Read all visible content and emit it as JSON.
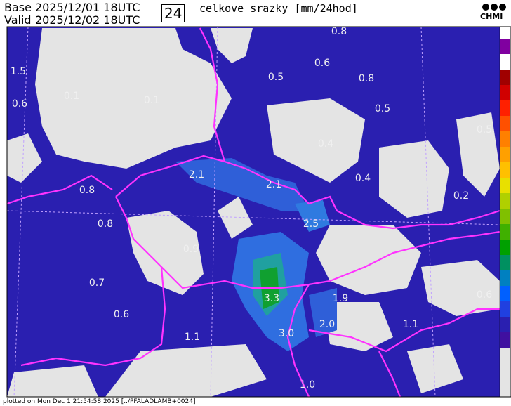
{
  "header": {
    "base_label": "Base",
    "base_time": "2025/12/01 18UTC",
    "valid_label": "Valid",
    "valid_time": "2025/12/02 18UTC",
    "hours": "24",
    "title": "celkove srazky [mm/24hod]",
    "logo": "CHMI"
  },
  "footer": "plotted on Mon Dec  1 21:54:58 2025 [../PFALADLAMB+0024]",
  "map_labels": [
    "0.8",
    "0.6",
    "0.5",
    "0.8",
    "1.5",
    "0.1",
    "0.1",
    "0.6",
    "0.5",
    "0.4",
    "2.1",
    "2.1",
    "0.4",
    "0.8",
    "0.2",
    "0.8",
    "2.5",
    "0.9",
    "0.7",
    "3.3",
    "1.9",
    "0.6",
    "2.0",
    "3.0",
    "1.1",
    "1.1",
    "1.0",
    "0.6",
    "0.5"
  ]
}
